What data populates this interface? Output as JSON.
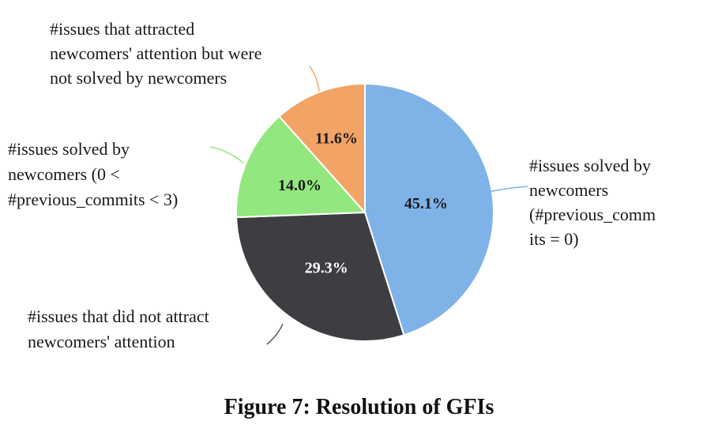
{
  "chart_data": {
    "type": "pie",
    "slices": [
      {
        "value": 45.1,
        "label": "45.1%",
        "color": "#7fb3e8",
        "label_color": "#1a1a1a",
        "description": [
          "#issues solved by",
          "newcomers",
          "(#previous_comm",
          "its = 0)"
        ]
      },
      {
        "value": 29.3,
        "label": "29.3%",
        "color": "#3e3d42",
        "label_color": "#ffffff",
        "description": [
          "#issues that did not attract",
          "newcomers' attention"
        ]
      },
      {
        "value": 14.0,
        "label": "14.0%",
        "color": "#92e87f",
        "label_color": "#1a1a1a",
        "description": [
          "#issues solved by",
          "newcomers (0 <",
          "#previous_commits < 3)"
        ]
      },
      {
        "value": 11.6,
        "label": "11.6%",
        "color": "#f2a466",
        "label_color": "#1a1a1a",
        "description": [
          "#issues that attracted",
          "newcomers' attention but were",
          "not solved by newcomers"
        ]
      }
    ],
    "start": "12 o'clock",
    "direction": "clockwise"
  },
  "caption": "Figure 7: Resolution of GFIs"
}
